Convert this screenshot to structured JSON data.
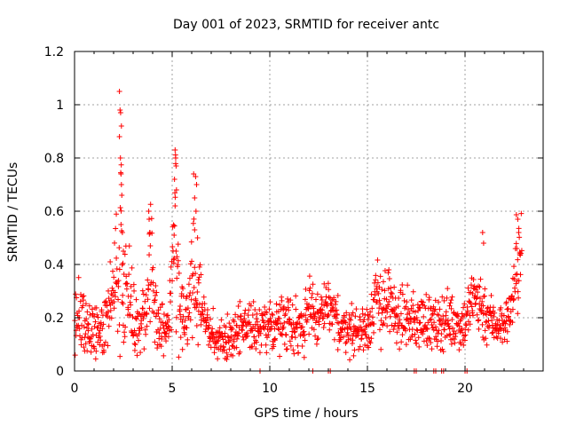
{
  "chart_data": {
    "type": "scatter",
    "title": "Day 001 of 2023, SRMTID for receiver antc",
    "xlabel": "GPS time / hours",
    "ylabel": "SRMTID / TECUs",
    "xlim": [
      0,
      24
    ],
    "ylim": [
      0,
      1.2
    ],
    "xticks": [
      0,
      5,
      10,
      15,
      20
    ],
    "xtick_labels": [
      "0",
      "5",
      "10",
      "15",
      "20"
    ],
    "yticks": [
      0,
      0.2,
      0.4,
      0.6,
      0.8,
      1.0,
      1.2
    ],
    "ytick_labels": [
      "0",
      "0.2",
      "0.4",
      "0.6",
      "0.8",
      "1",
      "1.2"
    ],
    "grid": true,
    "marker": "+",
    "series": [
      {
        "name": "SRMTID",
        "color": "#ff0000",
        "profile": [
          [
            0.0,
            0.15,
            0.06
          ],
          [
            0.3,
            0.2,
            0.07
          ],
          [
            0.6,
            0.17,
            0.05
          ],
          [
            1.0,
            0.15,
            0.05
          ],
          [
            1.4,
            0.17,
            0.05
          ],
          [
            1.8,
            0.2,
            0.06
          ],
          [
            2.0,
            0.33,
            0.08
          ],
          [
            2.2,
            0.4,
            0.1
          ],
          [
            2.35,
            0.5,
            0.2
          ],
          [
            2.5,
            0.35,
            0.12
          ],
          [
            2.8,
            0.3,
            0.08
          ],
          [
            3.0,
            0.2,
            0.06
          ],
          [
            3.3,
            0.15,
            0.05
          ],
          [
            3.7,
            0.25,
            0.08
          ],
          [
            3.9,
            0.4,
            0.15
          ],
          [
            4.2,
            0.2,
            0.06
          ],
          [
            4.5,
            0.15,
            0.05
          ],
          [
            4.8,
            0.17,
            0.05
          ],
          [
            5.0,
            0.3,
            0.1
          ],
          [
            5.15,
            0.5,
            0.2
          ],
          [
            5.4,
            0.2,
            0.06
          ],
          [
            5.8,
            0.2,
            0.05
          ],
          [
            6.1,
            0.4,
            0.12
          ],
          [
            6.3,
            0.3,
            0.12
          ],
          [
            6.6,
            0.2,
            0.05
          ],
          [
            7.0,
            0.13,
            0.04
          ],
          [
            7.5,
            0.12,
            0.03
          ],
          [
            8.0,
            0.13,
            0.04
          ],
          [
            8.5,
            0.17,
            0.05
          ],
          [
            9.0,
            0.18,
            0.04
          ],
          [
            9.5,
            0.15,
            0.04
          ],
          [
            10.0,
            0.17,
            0.04
          ],
          [
            10.5,
            0.18,
            0.05
          ],
          [
            11.0,
            0.2,
            0.06
          ],
          [
            11.5,
            0.15,
            0.05
          ],
          [
            12.0,
            0.22,
            0.07
          ],
          [
            12.5,
            0.2,
            0.06
          ],
          [
            13.0,
            0.23,
            0.06
          ],
          [
            13.5,
            0.18,
            0.05
          ],
          [
            14.0,
            0.16,
            0.04
          ],
          [
            14.5,
            0.15,
            0.05
          ],
          [
            15.0,
            0.17,
            0.05
          ],
          [
            15.5,
            0.27,
            0.07
          ],
          [
            16.0,
            0.25,
            0.07
          ],
          [
            16.5,
            0.2,
            0.05
          ],
          [
            17.0,
            0.2,
            0.05
          ],
          [
            17.5,
            0.18,
            0.05
          ],
          [
            18.0,
            0.2,
            0.05
          ],
          [
            18.5,
            0.16,
            0.05
          ],
          [
            19.0,
            0.2,
            0.05
          ],
          [
            19.5,
            0.18,
            0.05
          ],
          [
            20.0,
            0.18,
            0.05
          ],
          [
            20.3,
            0.25,
            0.06
          ],
          [
            20.6,
            0.28,
            0.07
          ],
          [
            21.0,
            0.22,
            0.06
          ],
          [
            21.5,
            0.18,
            0.04
          ],
          [
            22.0,
            0.17,
            0.04
          ],
          [
            22.3,
            0.22,
            0.04
          ],
          [
            22.6,
            0.35,
            0.1
          ],
          [
            22.8,
            0.45,
            0.08
          ]
        ],
        "spikes": [
          [
            2.3,
            1.05
          ],
          [
            2.33,
            0.98
          ],
          [
            2.36,
            0.97
          ],
          [
            2.4,
            0.92
          ],
          [
            2.3,
            0.88
          ],
          [
            2.35,
            0.8
          ],
          [
            2.38,
            0.74
          ],
          [
            2.4,
            0.7
          ],
          [
            2.42,
            0.66
          ],
          [
            2.38,
            0.55
          ],
          [
            2.45,
            0.52
          ],
          [
            2.5,
            0.45
          ],
          [
            3.8,
            0.6
          ],
          [
            3.82,
            0.57
          ],
          [
            3.85,
            0.52
          ],
          [
            3.88,
            0.47
          ],
          [
            5.15,
            0.83
          ],
          [
            5.18,
            0.8
          ],
          [
            5.2,
            0.77
          ],
          [
            5.12,
            0.72
          ],
          [
            5.22,
            0.68
          ],
          [
            5.15,
            0.62
          ],
          [
            5.1,
            0.51
          ],
          [
            5.2,
            0.45
          ],
          [
            6.1,
            0.74
          ],
          [
            6.2,
            0.73
          ],
          [
            6.25,
            0.7
          ],
          [
            6.15,
            0.65
          ],
          [
            6.22,
            0.6
          ],
          [
            6.15,
            0.53
          ],
          [
            6.3,
            0.5
          ],
          [
            20.9,
            0.52
          ],
          [
            20.95,
            0.48
          ],
          [
            22.7,
            0.57
          ],
          [
            22.75,
            0.52
          ],
          [
            22.65,
            0.46
          ],
          [
            22.8,
            0.44
          ]
        ],
        "zeros": [
          9.5,
          12.2,
          13.0,
          13.1,
          17.4,
          17.5,
          18.4,
          18.5,
          18.8,
          18.9,
          20.0,
          20.1
        ],
        "x_start": 0.02,
        "x_end": 22.9,
        "n_points": 1400
      }
    ]
  }
}
